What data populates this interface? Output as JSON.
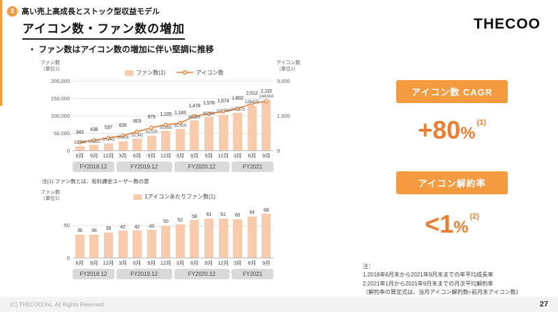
{
  "header": {
    "section_number": "3",
    "section_label": "高い売上高成長とストック型収益モデル",
    "title": "アイコン数・ファン数の増加",
    "logo": "THECOO",
    "bullet_marker": "・",
    "bullet": "ファン数はアイコン数の増加に伴い堅調に推移"
  },
  "chart_data": [
    {
      "type": "bar",
      "name": "fans-and-icons-quarterly",
      "left_axis_label_1": "ファン数",
      "left_axis_label_2": "（単位1）",
      "right_axis_label_1": "アイコン数",
      "right_axis_label_2": "（単位1）",
      "left_max": 200000,
      "right_max": 3000,
      "left_ticks": [
        {
          "label": "200,000",
          "value": 200000
        },
        {
          "label": "150,000",
          "value": 150000
        },
        {
          "label": "100,000",
          "value": 100000
        },
        {
          "label": "50,000",
          "value": 50000
        },
        {
          "label": "0",
          "value": 0
        }
      ],
      "right_ticks": [
        {
          "label": "3,000",
          "value": 3000
        },
        {
          "label": "1,500",
          "value": 1500
        },
        {
          "label": "0",
          "value": 0
        }
      ],
      "categories": [
        "6月",
        "9月",
        "12月",
        "3月",
        "6月",
        "9月",
        "12月",
        "3月",
        "6月",
        "9月",
        "12月",
        "3月",
        "6月",
        "9月"
      ],
      "fy_groups": [
        {
          "label": "FY2018.12",
          "span": 3
        },
        {
          "label": "FY2019.12",
          "span": 4
        },
        {
          "label": "FY2020.12",
          "span": 4
        },
        {
          "label": "FY2021",
          "span": 3
        }
      ],
      "bar_series": {
        "name": "ファン数(1)",
        "values": [
          12348,
          15815,
          20943,
          26616,
          33342,
          42526,
          55695,
          61516,
          85856,
          95890,
          102760,
          107573,
          128876,
          144604
        ],
        "labels": [
          "12,348",
          "15,815",
          "20,943",
          "26,616",
          "33,342",
          "42,526",
          "55,695",
          "61,516",
          "85,856",
          "95,890",
          "102,760",
          "107,573",
          "128,876",
          "144,604"
        ]
      },
      "line_series": {
        "name": "アイコン数",
        "values": [
          343,
          438,
          537,
          635,
          803,
          979,
          1105,
          1183,
          1478,
          1578,
          1674,
          1802,
          2012,
          2115
        ],
        "labels": [
          "343",
          "438",
          "537",
          "635",
          "803",
          "979",
          "1,105",
          "1,183",
          "1,478",
          "1,578",
          "1,674",
          "1,802",
          "2,012",
          "2,115"
        ]
      }
    },
    {
      "type": "bar",
      "name": "fans-per-icon-quarterly",
      "left_axis_label_1": "ファン数",
      "left_axis_label_2": "（単位1）",
      "max": 80,
      "ticks": [
        {
          "label": "50",
          "value": 50
        },
        {
          "label": "0",
          "value": 0
        }
      ],
      "categories": [
        "6月",
        "9月",
        "12月",
        "3月",
        "6月",
        "9月",
        "12月",
        "3月",
        "6月",
        "9月",
        "12月",
        "3月",
        "6月",
        "9月"
      ],
      "fy_groups": [
        {
          "label": "FY2018.12",
          "span": 3
        },
        {
          "label": "FY2019.12",
          "span": 4
        },
        {
          "label": "FY2020.12",
          "span": 4
        },
        {
          "label": "FY2021",
          "span": 3
        }
      ],
      "bar_series": {
        "name": "1アイコンあたりファン数(1)",
        "values": [
          36,
          36,
          39,
          42,
          42,
          43,
          50,
          52,
          58,
          61,
          61,
          60,
          64,
          68
        ],
        "labels": [
          "36",
          "36",
          "39",
          "42",
          "42",
          "43",
          "50",
          "52",
          "58",
          "61",
          "61",
          "60",
          "64",
          "68"
        ]
      }
    }
  ],
  "chart1_note": "注(1) ファン数とは、有料課金ユーザー数の意",
  "right_panel": {
    "badge1": "アイコン数 CAGR",
    "stat1_value": "+80",
    "stat1_unit": "%",
    "stat1_sup": "(1)",
    "badge2": "アイコン解約率",
    "stat2_value": "<1",
    "stat2_unit": "%",
    "stat2_sup": "(2)",
    "notes_title": "注：",
    "notes": [
      "1.2018年6月末から2021年9月末までの年平均成長率",
      "2.2021年1月から2021年9月末までの月次平均解約率",
      "（解約率の算定式は、当月アイコン解約数÷前月末アイコン数）"
    ]
  },
  "footer": {
    "copyright": "(C) THECOO,Inc. All Rights Reserved.",
    "page": "27"
  },
  "colors": {
    "accent_orange": "#ED7D31",
    "badge_orange": "#F49B3F",
    "bar_peach": "#F8CBAD",
    "fy_box_gray": "#D9D9D9"
  }
}
